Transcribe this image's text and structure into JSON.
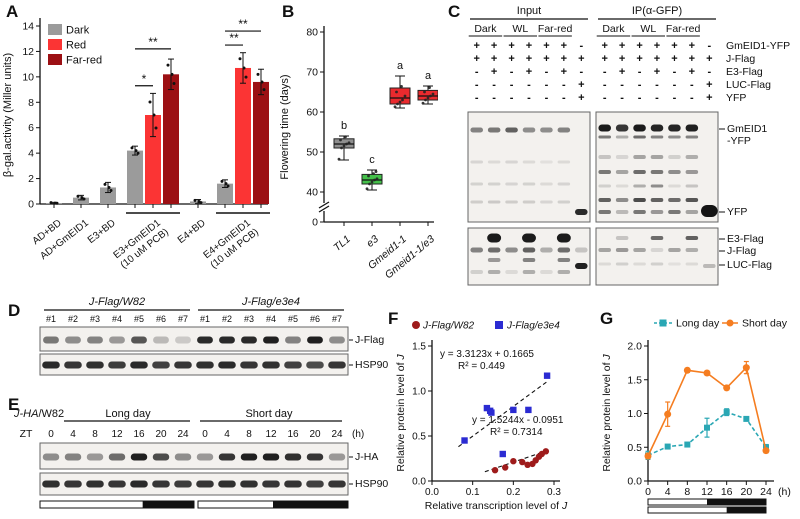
{
  "panel_labels": {
    "A": "A",
    "B": "B",
    "C": "C",
    "D": "D",
    "E": "E",
    "F": "F",
    "G": "G"
  },
  "chart_data": [
    {
      "panel": "A",
      "type": "bar",
      "ylabel": "β-gal.activity (Miller units)",
      "ylim": [
        0,
        14
      ],
      "yticks": [
        0,
        2,
        4,
        6,
        8,
        10,
        12,
        14
      ],
      "series": [
        {
          "name": "Dark",
          "color": "#9b9b9b"
        },
        {
          "name": "Red",
          "color": "#fb3434"
        },
        {
          "name": "Far-red",
          "color": "#9c1014"
        }
      ],
      "groups": [
        {
          "label": [
            "AD+BD"
          ],
          "underline": false,
          "bars": [
            {
              "s": 0,
              "v": 0.07,
              "e": 0.06
            }
          ]
        },
        {
          "label": [
            "AD+GmEID1"
          ],
          "underline": false,
          "bars": [
            {
              "s": 0,
              "v": 0.5,
              "e": 0.18
            }
          ]
        },
        {
          "label": [
            "E3+BD"
          ],
          "underline": false,
          "bars": [
            {
              "s": 0,
              "v": 1.3,
              "e": 0.4
            }
          ]
        },
        {
          "label": [
            "E3+GmEID1",
            "(10 uM PCB)"
          ],
          "underline": true,
          "bars": [
            {
              "s": 0,
              "v": 4.2,
              "e": 0.35
            },
            {
              "s": 1,
              "v": 7.0,
              "e": 1.7
            },
            {
              "s": 2,
              "v": 10.2,
              "e": 1.2
            }
          ]
        },
        {
          "label": [
            "E4+BD"
          ],
          "underline": false,
          "bars": [
            {
              "s": 0,
              "v": 0.2,
              "e": 0.15
            }
          ]
        },
        {
          "label": [
            "E4+GmEID1",
            "(10 uM PCB)"
          ],
          "underline": true,
          "bars": [
            {
              "s": 0,
              "v": 1.6,
              "e": 0.3
            },
            {
              "s": 1,
              "v": 10.7,
              "e": 1.2
            },
            {
              "s": 2,
              "v": 9.6,
              "e": 1.0
            }
          ]
        }
      ],
      "sig": [
        {
          "g": 3,
          "a": 0,
          "b": 1,
          "t": "*",
          "y": 9.3
        },
        {
          "g": 3,
          "a": 0,
          "b": 2,
          "t": "**",
          "y": 12.2
        },
        {
          "g": 5,
          "a": 0,
          "b": 1,
          "t": "**",
          "y": 12.5
        },
        {
          "g": 5,
          "a": 0,
          "b": 2,
          "t": "**",
          "y": 13.6
        }
      ]
    },
    {
      "panel": "B",
      "type": "box",
      "ylabel": "Flowering time (days)",
      "yticks": [
        0,
        40,
        50,
        60,
        70,
        80
      ],
      "axis_break_between": [
        0,
        40
      ],
      "boxes": [
        {
          "label": "TL1",
          "color": "#8f8f8f",
          "letter": "b",
          "low": 48,
          "q1": 51,
          "med": 52,
          "q3": 53.3,
          "high": 54,
          "points": [
            48.2,
            51,
            51.5,
            52,
            52.3,
            53,
            53.8
          ]
        },
        {
          "label": "e3",
          "color": "#44c04a",
          "letter": "c",
          "low": 40.5,
          "q1": 42,
          "med": 43,
          "q3": 44.4,
          "high": 45.5,
          "points": [
            40.8,
            42,
            42.5,
            43,
            43.3,
            44,
            44.6,
            45.1
          ]
        },
        {
          "label": "Gmeid1-1",
          "color": "#ea2a2e",
          "letter": "a",
          "low": 61,
          "q1": 62,
          "med": 63.5,
          "q3": 66,
          "high": 69,
          "points": [
            61.3,
            62,
            62.5,
            63,
            64,
            65,
            66.4
          ]
        },
        {
          "label": "Gmeid1-1/e3",
          "color": "#ea2a2e",
          "letter": "a",
          "low": 62,
          "q1": 63,
          "med": 64,
          "q3": 65.4,
          "high": 66.5,
          "points": [
            62.2,
            63,
            63.5,
            64,
            64.5,
            65,
            66.1
          ]
        }
      ]
    },
    {
      "panel": "F",
      "type": "scatter",
      "xlabel": "Relative transcription level of J",
      "ylabel": "Relative protein level of J",
      "xticks": [
        0,
        0.1,
        0.2,
        0.3
      ],
      "yticks": [
        0,
        0.5,
        1.0,
        1.5
      ],
      "xlim": [
        0,
        0.32
      ],
      "ylim": [
        0,
        1.55
      ],
      "series": [
        {
          "name": "J-Flag/W82",
          "color": "#9e1b1b",
          "marker": "circle",
          "points": [
            [
              0.155,
              0.12
            ],
            [
              0.18,
              0.15
            ],
            [
              0.2,
              0.22
            ],
            [
              0.222,
              0.21
            ],
            [
              0.235,
              0.18
            ],
            [
              0.247,
              0.19
            ],
            [
              0.255,
              0.23
            ],
            [
              0.263,
              0.27
            ],
            [
              0.27,
              0.3
            ],
            [
              0.28,
              0.33
            ]
          ],
          "fit": {
            "slope": 1.5244,
            "intercept": -0.0951,
            "x0": 0.13,
            "x1": 0.29
          },
          "eq": "y = 1.5244x - 0.0951",
          "r2": "R² = 0.7314"
        },
        {
          "name": "J-Flag/e3e4",
          "color": "#2b2bd2",
          "marker": "square",
          "points": [
            [
              0.08,
              0.45
            ],
            [
              0.135,
              0.81
            ],
            [
              0.143,
              0.78
            ],
            [
              0.146,
              0.76
            ],
            [
              0.174,
              0.3
            ],
            [
              0.2,
              0.79
            ],
            [
              0.237,
              0.79
            ],
            [
              0.283,
              1.17
            ]
          ],
          "fit": {
            "slope": 3.3123,
            "intercept": 0.1665,
            "x0": 0.065,
            "x1": 0.285
          },
          "eq": "y = 3.3123x + 0.1665",
          "r2": "R² = 0.449"
        }
      ]
    },
    {
      "panel": "G",
      "type": "line",
      "ylabel": "Relative protein level of J",
      "x": [
        0,
        4,
        8,
        12,
        16,
        20,
        24
      ],
      "x_unit": "(h)",
      "yticks": [
        0,
        0.5,
        1.0,
        1.5,
        2.0
      ],
      "ylim": [
        0,
        2.0
      ],
      "series": [
        {
          "name": "Long day",
          "color": "#2aa7b4",
          "marker": "square",
          "dash": true,
          "values": [
            0.38,
            0.51,
            0.54,
            0.79,
            1.02,
            0.92,
            0.5
          ],
          "err": [
            0.06,
            0.03,
            0.03,
            0.14,
            0.05,
            0.03,
            0.04
          ]
        },
        {
          "name": "Short day",
          "color": "#f57d20",
          "marker": "circle",
          "dash": false,
          "values": [
            0.37,
            0.99,
            1.64,
            1.6,
            1.38,
            1.68,
            0.45
          ],
          "err": [
            0.04,
            0.18,
            0.03,
            0.03,
            0.03,
            0.09,
            0.03
          ]
        }
      ],
      "photoperiod_bars": [
        {
          "name": "short-day",
          "light_hours": 12,
          "total": 24
        },
        {
          "name": "long-day",
          "light_hours": 16,
          "total": 24
        }
      ]
    }
  ],
  "blots": {
    "C": {
      "groups": [
        "Input",
        "IP(α-GFP)"
      ],
      "light": [
        "Dark",
        "WL",
        "Far-red"
      ],
      "rows": [
        {
          "label": "GmEID1-YFP",
          "input": [
            "+",
            "+",
            "+",
            "+",
            "+",
            "+",
            "-"
          ],
          "ip": [
            "+",
            "+",
            "+",
            "+",
            "+",
            "+",
            "-"
          ]
        },
        {
          "label": "J-Flag",
          "input": [
            "+",
            "+",
            "+",
            "+",
            "+",
            "+",
            "+"
          ],
          "ip": [
            "+",
            "+",
            "+",
            "+",
            "+",
            "+",
            "+"
          ]
        },
        {
          "label": "E3-Flag",
          "input": [
            "-",
            "+",
            "-",
            "+",
            "-",
            "+",
            "-"
          ],
          "ip": [
            "-",
            "+",
            "-",
            "+",
            "-",
            "+",
            "-"
          ]
        },
        {
          "label": "LUC-Flag",
          "input": [
            "-",
            "-",
            "-",
            "-",
            "-",
            "-",
            "+"
          ],
          "ip": [
            "-",
            "-",
            "-",
            "-",
            "-",
            "-",
            "+"
          ]
        },
        {
          "label": "YFP",
          "input": [
            "-",
            "-",
            "-",
            "-",
            "-",
            "-",
            "+"
          ],
          "ip": [
            "-",
            "-",
            "-",
            "-",
            "-",
            "-",
            "+"
          ]
        }
      ],
      "top_labels": [
        "GmEID1",
        "-YFP",
        "YFP"
      ],
      "bottom_labels": [
        "E3-Flag",
        "J-Flag",
        "LUC-Flag"
      ],
      "blot_input_top": [
        {
          "y": 18,
          "h": 5,
          "i": [
            0.5,
            0.55,
            0.65,
            0.45,
            0.45,
            0.5,
            0
          ]
        },
        {
          "y": 50,
          "h": 3,
          "i": [
            0.12,
            0.1,
            0.12,
            0.1,
            0.08,
            0.1,
            0
          ]
        },
        {
          "y": 72,
          "h": 3,
          "i": [
            0.14,
            0.14,
            0.13,
            0.14,
            0.1,
            0.13,
            0
          ]
        },
        {
          "y": 90,
          "h": 3,
          "i": [
            0.16,
            0.18,
            0.16,
            0.16,
            0.12,
            0.15,
            0
          ]
        },
        {
          "y": 100,
          "h": 6,
          "i": [
            0,
            0,
            0,
            0,
            0,
            0,
            0.9
          ]
        }
      ],
      "blot_ip_top": [
        {
          "y": 16,
          "h": 7,
          "i": [
            0.97,
            0.85,
            0.97,
            0.92,
            0.92,
            0.95,
            0
          ]
        },
        {
          "y": 25,
          "h": 3,
          "i": [
            0.55,
            0.3,
            0.6,
            0.5,
            0.45,
            0.5,
            0
          ]
        },
        {
          "y": 45,
          "h": 4,
          "i": [
            0.2,
            0.12,
            0.35,
            0.35,
            0.15,
            0.3,
            0
          ]
        },
        {
          "y": 60,
          "h": 4,
          "i": [
            0.55,
            0.35,
            0.6,
            0.55,
            0.45,
            0.4,
            0
          ]
        },
        {
          "y": 74,
          "h": 3,
          "i": [
            0.15,
            0.1,
            0.3,
            0.45,
            0.1,
            0.2,
            0
          ]
        },
        {
          "y": 88,
          "h": 4,
          "i": [
            0.65,
            0.45,
            0.75,
            0.65,
            0.6,
            0.7,
            0
          ]
        },
        {
          "y": 100,
          "h": 4,
          "i": [
            0.55,
            0.25,
            0.55,
            0.4,
            0.55,
            0.35,
            0
          ]
        },
        {
          "y": 99,
          "h": 12,
          "wf": 0.95,
          "i": [
            0,
            0,
            0,
            0,
            0,
            0,
            1
          ]
        }
      ],
      "blot_input_bottom": [
        {
          "y": 10,
          "h": 9,
          "wf": 0.8,
          "i": [
            0,
            0.97,
            0,
            0.97,
            0,
            0.97,
            0
          ]
        },
        {
          "y": 22,
          "h": 5,
          "i": [
            0.5,
            0.6,
            0.45,
            0.65,
            0.3,
            0.6,
            0.2
          ]
        },
        {
          "y": 32,
          "h": 4,
          "i": [
            0,
            0.4,
            0,
            0.5,
            0,
            0.5,
            0
          ]
        },
        {
          "y": 44,
          "h": 4,
          "i": [
            0.15,
            0.3,
            0.1,
            0.3,
            0.1,
            0.3,
            0
          ]
        },
        {
          "y": 38,
          "h": 6,
          "i": [
            0,
            0,
            0,
            0,
            0,
            0,
            0.95
          ]
        }
      ],
      "blot_ip_bottom": [
        {
          "y": 10,
          "h": 4,
          "i": [
            0,
            0.2,
            0,
            0.6,
            0,
            0.65,
            0
          ]
        },
        {
          "y": 22,
          "h": 4,
          "i": [
            0.35,
            0.4,
            0.35,
            0.12,
            0.35,
            0.3,
            0
          ]
        },
        {
          "y": 36,
          "h": 3,
          "i": [
            0.1,
            0.15,
            0.1,
            0.15,
            0.08,
            0.1,
            0
          ]
        },
        {
          "y": 38,
          "h": 4,
          "i": [
            0,
            0,
            0,
            0,
            0,
            0,
            0.25
          ]
        }
      ]
    },
    "D": {
      "groups": [
        {
          "title": "J-Flag/W82",
          "lanes": [
            "#1",
            "#2",
            "#3",
            "#4",
            "#5",
            "#6",
            "#7"
          ]
        },
        {
          "title": "J-Flag/e3e4",
          "lanes": [
            "#1",
            "#2",
            "#3",
            "#4",
            "#5",
            "#6",
            "#7"
          ]
        }
      ],
      "band_labels": [
        "J-Flag",
        "HSP90"
      ],
      "jflag": [
        0.55,
        0.45,
        0.5,
        0.4,
        0.7,
        0.25,
        0.18,
        0.9,
        0.9,
        0.9,
        0.95,
        0.5,
        0.95,
        0.45
      ],
      "hsp90": [
        0.9,
        0.85,
        0.88,
        0.82,
        0.9,
        0.8,
        0.85,
        0.88,
        0.9,
        0.85,
        0.87,
        0.8,
        0.75,
        0.85
      ]
    },
    "E": {
      "title_italic": "J-HA",
      "title_rest": "/W82",
      "groups": [
        "Long day",
        "Short day"
      ],
      "zt_label": "ZT",
      "zt": [
        "0",
        "4",
        "8",
        "12",
        "16",
        "20",
        "24",
        "0",
        "4",
        "8",
        "12",
        "16",
        "20",
        "24"
      ],
      "unit": "(h)",
      "band_labels": [
        "J-HA",
        "HSP90"
      ],
      "jha": [
        0.45,
        0.5,
        0.4,
        0.6,
        0.95,
        0.75,
        0.45,
        0.4,
        0.85,
        0.95,
        0.95,
        0.88,
        0.85,
        0.4
      ],
      "hsp90": [
        0.88,
        0.85,
        0.87,
        0.85,
        0.9,
        0.85,
        0.82,
        0.85,
        0.88,
        0.87,
        0.85,
        0.86,
        0.8,
        0.85
      ],
      "photoperiod": [
        {
          "name": "long-day",
          "light_hours": 16,
          "total": 24
        },
        {
          "name": "short-day",
          "light_hours": 12,
          "total": 24
        }
      ]
    }
  }
}
